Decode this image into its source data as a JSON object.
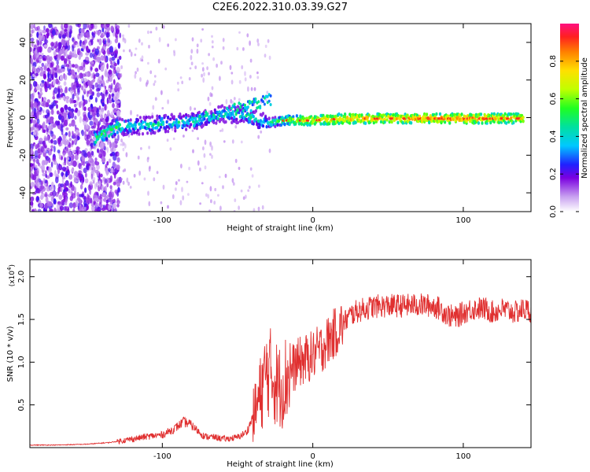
{
  "title": "C2E6.2022.310.03.39.G27",
  "chart_data": [
    {
      "type": "heatmap",
      "xlabel": "Height of straight line (km)",
      "ylabel": "Frequency (Hz)",
      "xlim": [
        -188,
        145
      ],
      "ylim": [
        -50,
        50
      ],
      "xticks": [
        -100,
        0,
        100
      ],
      "yticks": [
        -40,
        -20,
        0,
        20,
        40
      ],
      "colorbar": {
        "label": "Normalized spectral amplitude",
        "range": [
          0,
          1
        ],
        "ticks": [
          "0.0",
          "0.2",
          "0.4",
          "0.6",
          "0.8"
        ],
        "tick_values": [
          0,
          0.2,
          0.4,
          0.6,
          0.8
        ]
      },
      "ridge": [
        {
          "x": -145,
          "y": -11.5,
          "v": 0.55
        },
        {
          "x": -130,
          "y": -5,
          "v": 0.5
        },
        {
          "x": -120,
          "y": -4.5,
          "v": 0.4
        },
        {
          "x": -100,
          "y": -3.5,
          "v": 0.45
        },
        {
          "x": -80,
          "y": -2,
          "v": 0.4
        },
        {
          "x": -60,
          "y": 2,
          "v": 0.35
        },
        {
          "x": -45,
          "y": 1.5,
          "v": 0.45
        },
        {
          "x": -30,
          "y": -3,
          "v": 0.4
        },
        {
          "x": -20,
          "y": -1.5,
          "v": 0.6
        },
        {
          "x": 0,
          "y": -1.5,
          "v": 0.75
        },
        {
          "x": 20,
          "y": -0.5,
          "v": 0.8
        },
        {
          "x": 60,
          "y": -0.5,
          "v": 0.8
        },
        {
          "x": 100,
          "y": -0.5,
          "v": 0.85
        },
        {
          "x": 140,
          "y": -0.5,
          "v": 0.75
        }
      ]
    },
    {
      "type": "line",
      "xlabel": "Height of straight line (km)",
      "ylabel": "SNR (10 * v/v)",
      "y_multiplier": "(x10",
      "y_multiplier_exp": "4",
      "y_multiplier_close": ")",
      "xlim": [
        -188,
        145
      ],
      "ylim": [
        0,
        2.2
      ],
      "xticks": [
        -100,
        0,
        100
      ],
      "yticks": [
        0.5,
        1.0,
        1.5,
        2.0
      ],
      "ytick_labels": [
        "0.5",
        "1.0",
        "1.5",
        "2.0"
      ],
      "color": "#e03030",
      "series": [
        {
          "x": [
            -188,
            -170,
            -150,
            -135,
            -120,
            -110,
            -100,
            -92,
            -86,
            -82,
            -78,
            -72,
            -65,
            -58,
            -50,
            -44,
            -40,
            -36,
            -33,
            -30,
            -27,
            -24,
            -21,
            -18,
            -15,
            -12,
            -9,
            -6,
            -3,
            0,
            5,
            10,
            15,
            20,
            25,
            30,
            40,
            50,
            60,
            70,
            80,
            85,
            90,
            95,
            100,
            105,
            110,
            115,
            120,
            125,
            130,
            135,
            140,
            145
          ],
          "y": [
            0.03,
            0.03,
            0.04,
            0.06,
            0.1,
            0.13,
            0.15,
            0.22,
            0.3,
            0.28,
            0.22,
            0.13,
            0.12,
            0.1,
            0.12,
            0.18,
            0.35,
            0.55,
            0.75,
            0.9,
            0.85,
            0.75,
            0.7,
            0.8,
            0.9,
            0.95,
            1.0,
            1.02,
            1.05,
            1.08,
            1.15,
            1.25,
            1.35,
            1.45,
            1.55,
            1.6,
            1.65,
            1.66,
            1.66,
            1.67,
            1.66,
            1.62,
            1.55,
            1.52,
            1.58,
            1.62,
            1.63,
            1.62,
            1.58,
            1.62,
            1.6,
            1.58,
            1.62,
            1.6
          ]
        }
      ]
    }
  ]
}
